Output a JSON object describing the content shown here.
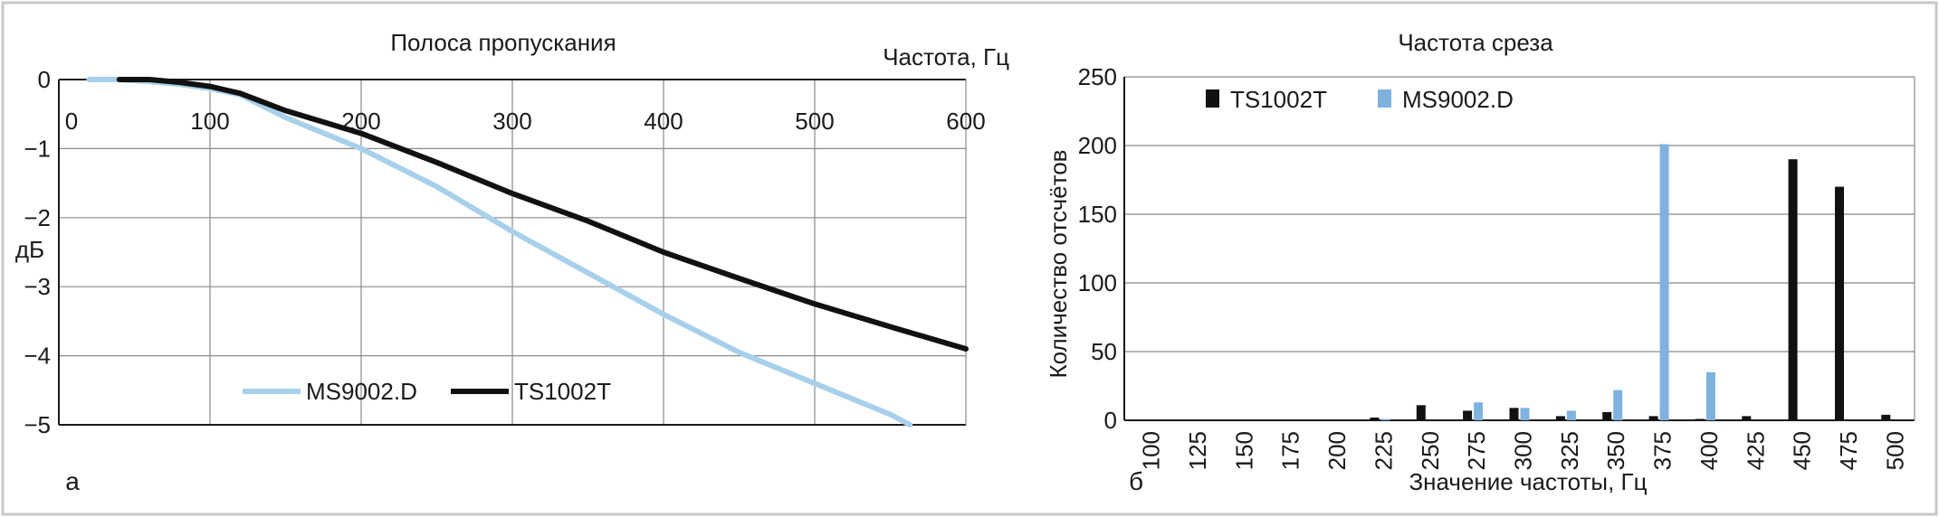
{
  "panels": {
    "left_letter": "а",
    "right_letter": "б"
  },
  "chart_data": [
    {
      "type": "line",
      "title": "Полоса пропускания",
      "xlabel": "Частота, Гц",
      "ylabel": "дБ",
      "xlim": [
        0,
        600
      ],
      "ylim": [
        -5,
        0
      ],
      "xticks": [
        "0",
        "100",
        "200",
        "300",
        "400",
        "500",
        "600"
      ],
      "yticks": [
        "0",
        "−1",
        "−2",
        "−3",
        "−4",
        "−5"
      ],
      "grid": true,
      "legend": "bottom-center",
      "series": [
        {
          "name": "MS9002.D",
          "color": "#a8d0ea",
          "x": [
            20,
            40,
            60,
            80,
            100,
            120,
            150,
            200,
            250,
            300,
            350,
            400,
            450,
            500,
            550,
            563
          ],
          "y": [
            0,
            0,
            -0.03,
            -0.07,
            -0.13,
            -0.22,
            -0.55,
            -1.0,
            -1.55,
            -2.2,
            -2.8,
            -3.4,
            -3.95,
            -4.4,
            -4.85,
            -5.0
          ]
        },
        {
          "name": "TS1002T",
          "color": "#111111",
          "x": [
            40,
            60,
            80,
            100,
            120,
            150,
            200,
            250,
            300,
            350,
            400,
            450,
            500,
            550,
            600
          ],
          "y": [
            0,
            0,
            -0.04,
            -0.1,
            -0.2,
            -0.45,
            -0.78,
            -1.2,
            -1.65,
            -2.05,
            -2.5,
            -2.88,
            -3.25,
            -3.58,
            -3.9
          ]
        }
      ]
    },
    {
      "type": "bar",
      "title": "Частота среза",
      "xlabel": "Значение частоты, Гц",
      "ylabel": "Количество отсчётов",
      "ylim": [
        0,
        250
      ],
      "yticks": [
        "0",
        "50",
        "100",
        "150",
        "200",
        "250"
      ],
      "grid": true,
      "legend": "top-left",
      "categories": [
        "100",
        "125",
        "150",
        "175",
        "200",
        "225",
        "250",
        "275",
        "300",
        "325",
        "350",
        "375",
        "400",
        "425",
        "450",
        "475",
        "500"
      ],
      "series": [
        {
          "name": "TS1002T",
          "color": "#111111",
          "values": [
            0,
            0,
            0,
            0,
            0,
            2,
            11,
            7,
            9,
            3,
            6,
            3,
            1,
            3,
            190,
            170,
            4
          ]
        },
        {
          "name": "MS9002.D",
          "color": "#7fb2de",
          "values": [
            0,
            0,
            0,
            0,
            0,
            1,
            0,
            13,
            9,
            7,
            22,
            201,
            35,
            0,
            0,
            0,
            0
          ]
        }
      ]
    }
  ]
}
